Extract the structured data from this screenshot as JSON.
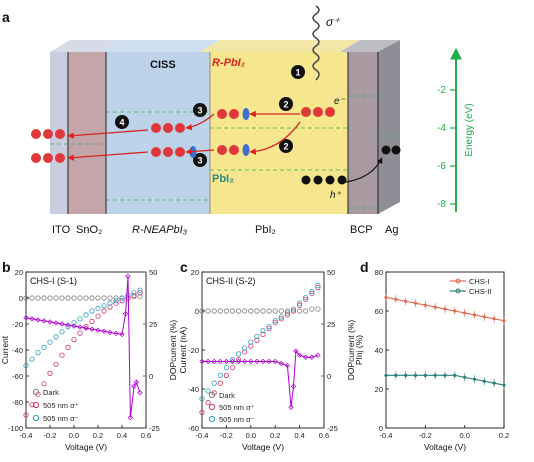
{
  "panels": {
    "a": {
      "label": "a",
      "layers": [
        "ITO",
        "SnO₂",
        "R-NEAPbI₃",
        "PbI₂",
        "BCP",
        "Ag"
      ],
      "ciss_label": "CISS",
      "rpbi2_label": "R-PbI₂",
      "pbi2_label": "PbI₂",
      "sigma_label": "σ⁺",
      "electron_label": "e⁻",
      "hole_label": "h⁺",
      "steps": [
        "1",
        "2",
        "2",
        "3",
        "3",
        "4"
      ],
      "energy_axis_label": "Energy (eV)",
      "energy_ticks": [
        "-2",
        "-4",
        "-6",
        "-8"
      ]
    },
    "b": {
      "label": "b",
      "title": "CHS-I (S-1)",
      "x_ticks": [
        "-0.4",
        "-0.2",
        "0.0",
        "0.2",
        "0.4",
        "0.6"
      ],
      "y_ticks": [
        "20",
        "0",
        "-20",
        "-40",
        "-60",
        "-80",
        "-100"
      ],
      "y2_ticks": [
        "50",
        "25",
        "0",
        "-25"
      ],
      "xlabel": "Voltage (V)",
      "ylabel": "Current",
      "y2label": "DOPcurrent (%)",
      "legend": [
        "Dark",
        "505 nm σ⁺",
        "505 nm σ⁻"
      ]
    },
    "c": {
      "label": "c",
      "title": "CHS-II (S-2)",
      "x_ticks": [
        "-0.4",
        "-0.2",
        "0.0",
        "0.2",
        "0.4",
        "0.6"
      ],
      "y_ticks": [
        "20",
        "0",
        "-20",
        "-40",
        "-60"
      ],
      "y2_ticks": [
        "50",
        "25",
        "0",
        "-25"
      ],
      "xlabel": "Voltage (V)",
      "ylabel": "Current (nA)",
      "y2label": "DOPcurrent (%)",
      "legend": [
        "Dark",
        "505 nm σ⁺",
        "505 nm σ⁻"
      ]
    },
    "d": {
      "label": "d",
      "x_ticks": [
        "-0.4",
        "-0.2",
        "0.0",
        "0.2"
      ],
      "y_ticks": [
        "80",
        "60",
        "40",
        "20",
        "0"
      ],
      "xlabel": "Voltage (V)",
      "ylabel": "PInj (%)",
      "legend": [
        "CHS-I",
        "CHS-II"
      ]
    }
  },
  "colors": {
    "dark": "#808080",
    "sigma_plus": "#d6336c",
    "sigma_minus": "#2a9fc0",
    "dop": "#b000d0",
    "chs1": "#e46a52",
    "chs2": "#2a7f7a",
    "energy_axis": "#1fae4b",
    "red_arrow": "#d8231f"
  },
  "chart_data": [
    {
      "panel": "b",
      "type": "scatter",
      "title": "CHS-I (S-1)",
      "xlabel": "Voltage (V)",
      "ylabel": "Current",
      "y2label": "DOPcurrent (%)",
      "xlim": [
        -0.4,
        0.6
      ],
      "ylim": [
        -100,
        20
      ],
      "y2lim": [
        -25,
        50
      ],
      "series": [
        {
          "name": "Dark",
          "x": [
            -0.4,
            -0.35,
            -0.3,
            -0.25,
            -0.2,
            -0.15,
            -0.1,
            -0.05,
            0,
            0.05,
            0.1,
            0.15,
            0.2,
            0.25,
            0.3,
            0.35,
            0.4,
            0.45,
            0.5,
            0.55
          ],
          "y": [
            0,
            0,
            0,
            0,
            0,
            0,
            0,
            0,
            0,
            0,
            0,
            0,
            0,
            0,
            0,
            0,
            0,
            0,
            1,
            1
          ]
        },
        {
          "name": "505 nm σ⁺",
          "x": [
            -0.4,
            -0.35,
            -0.3,
            -0.25,
            -0.2,
            -0.15,
            -0.1,
            -0.05,
            0,
            0.05,
            0.1,
            0.15,
            0.2,
            0.25,
            0.3,
            0.35,
            0.4,
            0.45,
            0.5,
            0.55
          ],
          "y": [
            -90,
            -82,
            -74,
            -66,
            -58,
            -51,
            -44,
            -38,
            -32,
            -27,
            -22,
            -18,
            -14,
            -10,
            -7,
            -4,
            -2,
            0,
            2,
            4
          ]
        },
        {
          "name": "505 nm σ⁻",
          "x": [
            -0.4,
            -0.35,
            -0.3,
            -0.25,
            -0.2,
            -0.15,
            -0.1,
            -0.05,
            0,
            0.05,
            0.1,
            0.15,
            0.2,
            0.25,
            0.3,
            0.35,
            0.4,
            0.45,
            0.5,
            0.55
          ],
          "y": [
            -52,
            -47,
            -42,
            -38,
            -34,
            -30,
            -26,
            -22,
            -19,
            -16,
            -13,
            -10,
            -8,
            -6,
            -4,
            -2,
            0,
            2,
            4,
            6
          ]
        },
        {
          "name": "DOPcurrent",
          "axis": "right",
          "x": [
            -0.4,
            -0.35,
            -0.3,
            -0.25,
            -0.2,
            -0.15,
            -0.1,
            -0.05,
            0,
            0.05,
            0.1,
            0.15,
            0.2,
            0.25,
            0.3,
            0.35,
            0.4,
            0.43,
            0.45,
            0.47,
            0.5,
            0.52,
            0.55
          ],
          "y": [
            28,
            27.5,
            27,
            26.5,
            26,
            25.5,
            25,
            24.5,
            24,
            23.5,
            23,
            22.5,
            22,
            21.5,
            21,
            20.5,
            20,
            30,
            48,
            -20,
            -5,
            -3,
            -8
          ]
        }
      ]
    },
    {
      "panel": "c",
      "type": "scatter",
      "title": "CHS-II (S-2)",
      "xlabel": "Voltage (V)",
      "ylabel": "Current (nA)",
      "y2label": "DOPcurrent (%)",
      "xlim": [
        -0.4,
        0.6
      ],
      "ylim": [
        -60,
        20
      ],
      "y2lim": [
        -25,
        50
      ],
      "series": [
        {
          "name": "Dark",
          "x": [
            -0.4,
            -0.35,
            -0.3,
            -0.25,
            -0.2,
            -0.15,
            -0.1,
            -0.05,
            0,
            0.05,
            0.1,
            0.15,
            0.2,
            0.25,
            0.3,
            0.35,
            0.4,
            0.45,
            0.5,
            0.55
          ],
          "y": [
            0,
            0,
            0,
            0,
            0,
            0,
            0,
            0,
            0,
            0,
            0,
            0,
            0,
            0,
            0,
            0,
            0,
            0,
            1,
            1
          ]
        },
        {
          "name": "505 nm σ⁺",
          "x": [
            -0.4,
            -0.35,
            -0.3,
            -0.25,
            -0.2,
            -0.15,
            -0.1,
            -0.05,
            0,
            0.05,
            0.1,
            0.15,
            0.2,
            0.25,
            0.3,
            0.35,
            0.4,
            0.45,
            0.5,
            0.55
          ],
          "y": [
            -52,
            -47,
            -42,
            -37,
            -33,
            -29,
            -25,
            -21,
            -18,
            -15,
            -12,
            -9,
            -6,
            -4,
            -2,
            0,
            3,
            6,
            9,
            12
          ]
        },
        {
          "name": "505 nm σ⁻",
          "x": [
            -0.4,
            -0.35,
            -0.3,
            -0.25,
            -0.2,
            -0.15,
            -0.1,
            -0.05,
            0,
            0.05,
            0.1,
            0.15,
            0.2,
            0.25,
            0.3,
            0.35,
            0.4,
            0.45,
            0.5,
            0.55
          ],
          "y": [
            -45,
            -41,
            -37,
            -33,
            -29,
            -25,
            -22,
            -19,
            -16,
            -13,
            -10,
            -8,
            -5,
            -3,
            -1,
            1,
            4,
            7,
            10,
            13
          ]
        },
        {
          "name": "DOPcurrent",
          "axis": "right",
          "x": [
            -0.4,
            -0.35,
            -0.3,
            -0.25,
            -0.2,
            -0.15,
            -0.1,
            -0.05,
            0,
            0.05,
            0.1,
            0.15,
            0.2,
            0.25,
            0.3,
            0.33,
            0.35,
            0.37,
            0.4,
            0.45,
            0.5,
            0.55
          ],
          "y": [
            7,
            7,
            7,
            7,
            7,
            7,
            7,
            7,
            7,
            7,
            7,
            7,
            7,
            6,
            5,
            -15,
            -5,
            12,
            10,
            9,
            9,
            10
          ]
        }
      ]
    },
    {
      "panel": "d",
      "type": "line",
      "xlabel": "Voltage (V)",
      "ylabel": "PInj (%)",
      "xlim": [
        -0.4,
        0.2
      ],
      "ylim": [
        0,
        80
      ],
      "series": [
        {
          "name": "CHS-I",
          "x": [
            -0.4,
            -0.35,
            -0.3,
            -0.25,
            -0.2,
            -0.15,
            -0.1,
            -0.05,
            0,
            0.05,
            0.1,
            0.15,
            0.2
          ],
          "y": [
            67,
            66,
            65,
            64,
            63,
            62,
            61,
            60,
            59,
            58,
            57,
            56,
            55
          ]
        },
        {
          "name": "CHS-II",
          "x": [
            -0.4,
            -0.35,
            -0.3,
            -0.25,
            -0.2,
            -0.15,
            -0.1,
            -0.05,
            0,
            0.05,
            0.1,
            0.15,
            0.2
          ],
          "y": [
            27,
            27,
            27,
            27,
            27,
            27,
            27,
            27,
            26,
            25,
            24,
            23,
            22
          ]
        }
      ]
    }
  ]
}
